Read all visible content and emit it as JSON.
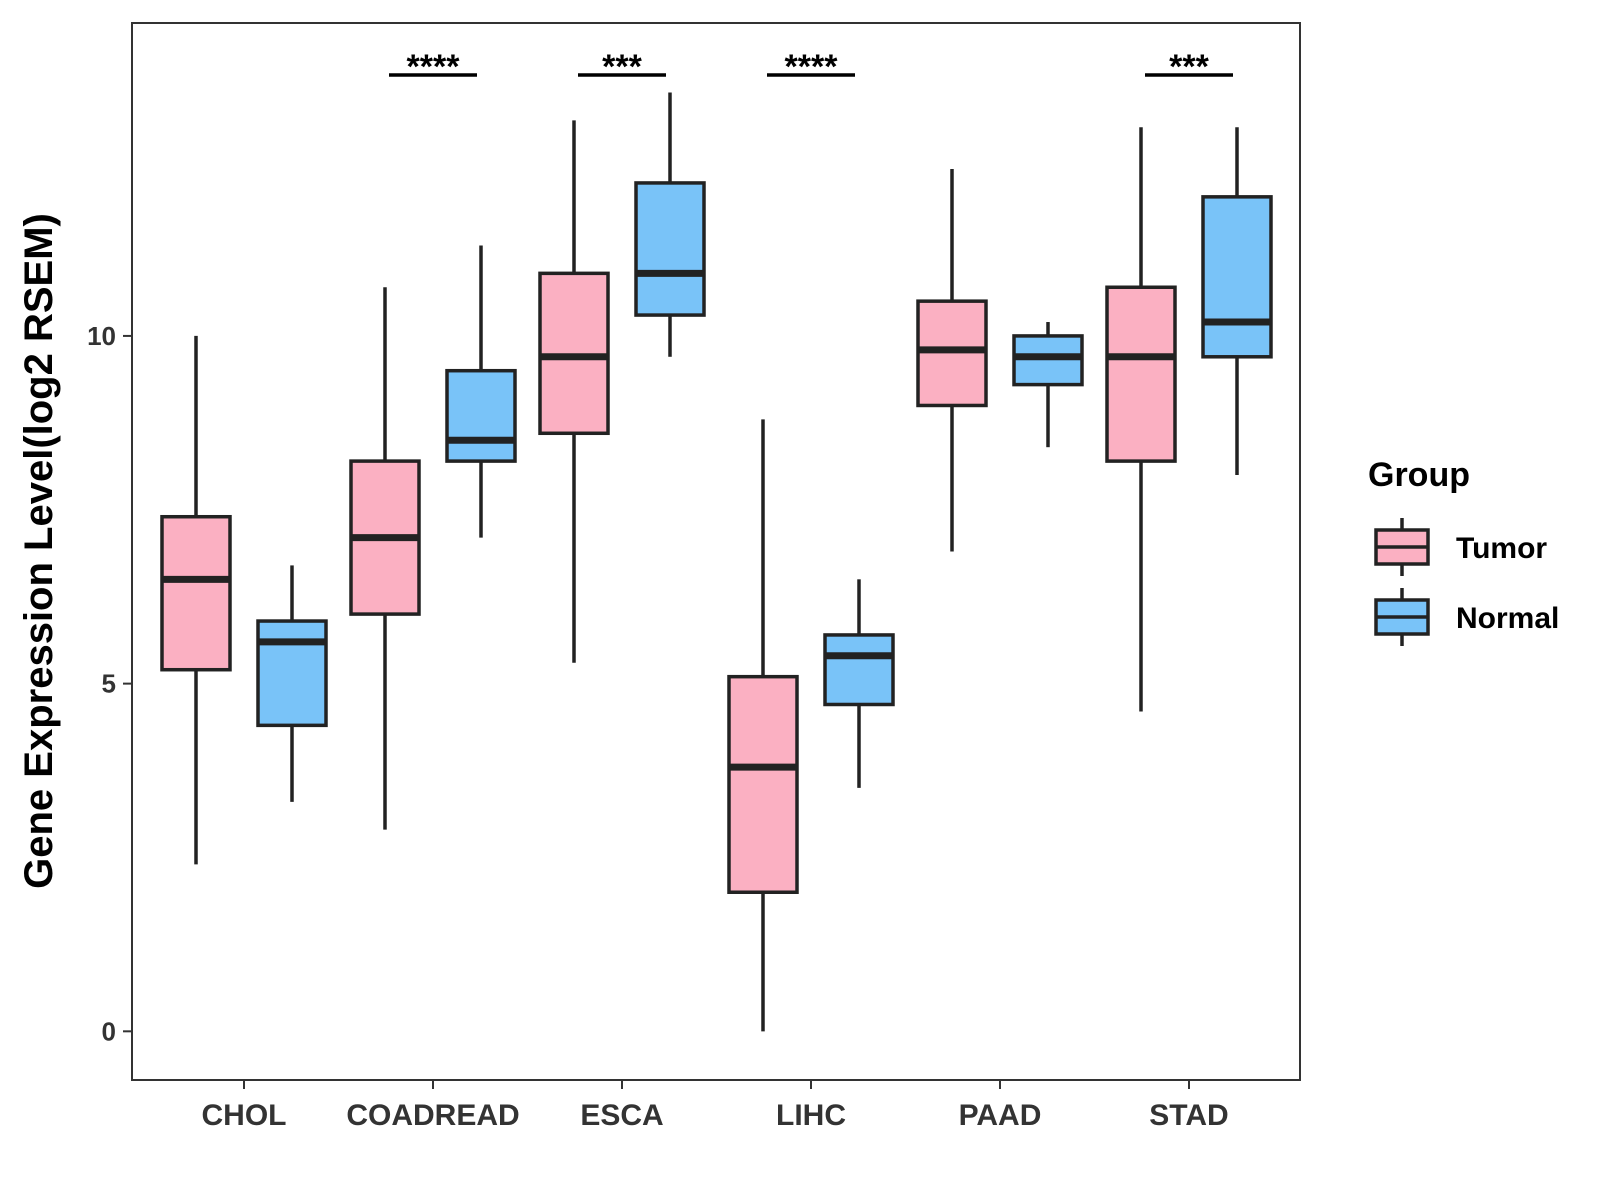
{
  "chart_data": {
    "type": "boxplot",
    "title": "",
    "xlabel": "",
    "ylabel": "Gene Expression Level(log2 RSEM)",
    "ylim": [
      -0.7,
      14.5
    ],
    "yticks": [
      0,
      5,
      10
    ],
    "grid": false,
    "legend": {
      "title": "Group",
      "placement": "right"
    },
    "categories": [
      "CHOL",
      "COADREAD",
      "ESCA",
      "LIHC",
      "PAAD",
      "STAD"
    ],
    "series": [
      {
        "name": "Tumor",
        "color": "#FBB0C2",
        "boxes": [
          {
            "whisker_low": 2.4,
            "q1": 5.2,
            "median": 6.5,
            "q3": 7.4,
            "whisker_high": 10.0
          },
          {
            "whisker_low": 2.9,
            "q1": 6.0,
            "median": 7.1,
            "q3": 8.2,
            "whisker_high": 10.7
          },
          {
            "whisker_low": 5.3,
            "q1": 8.6,
            "median": 9.7,
            "q3": 10.9,
            "whisker_high": 13.1
          },
          {
            "whisker_low": 0.0,
            "q1": 2.0,
            "median": 3.8,
            "q3": 5.1,
            "whisker_high": 8.8
          },
          {
            "whisker_low": 6.9,
            "q1": 9.0,
            "median": 9.8,
            "q3": 10.5,
            "whisker_high": 12.4
          },
          {
            "whisker_low": 4.6,
            "q1": 8.2,
            "median": 9.7,
            "q3": 10.7,
            "whisker_high": 13.0
          }
        ]
      },
      {
        "name": "Normal",
        "color": "#79C3F8",
        "boxes": [
          {
            "whisker_low": 3.3,
            "q1": 4.4,
            "median": 5.6,
            "q3": 5.9,
            "whisker_high": 6.7
          },
          {
            "whisker_low": 7.1,
            "q1": 8.2,
            "median": 8.5,
            "q3": 9.5,
            "whisker_high": 11.3
          },
          {
            "whisker_low": 9.7,
            "q1": 10.3,
            "median": 10.9,
            "q3": 12.2,
            "whisker_high": 13.5
          },
          {
            "whisker_low": 3.5,
            "q1": 4.7,
            "median": 5.4,
            "q3": 5.7,
            "whisker_high": 6.5
          },
          {
            "whisker_low": 8.4,
            "q1": 9.3,
            "median": 9.7,
            "q3": 10.0,
            "whisker_high": 10.2
          },
          {
            "whisker_low": 8.0,
            "q1": 9.7,
            "median": 10.2,
            "q3": 12.0,
            "whisker_high": 13.0
          }
        ]
      }
    ],
    "significance": [
      {
        "category": "COADREAD",
        "label": "****"
      },
      {
        "category": "ESCA",
        "label": "***"
      },
      {
        "category": "LIHC",
        "label": "****"
      },
      {
        "category": "STAD",
        "label": "***"
      }
    ]
  }
}
